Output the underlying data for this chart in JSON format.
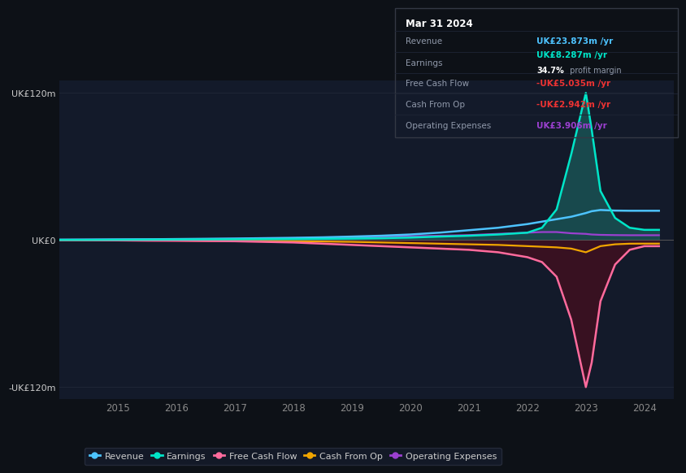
{
  "background_color": "#0d1117",
  "plot_bg_color": "#131a2a",
  "years": [
    2014.0,
    2014.5,
    2015.0,
    2015.5,
    2016.0,
    2016.5,
    2017.0,
    2017.5,
    2018.0,
    2018.5,
    2019.0,
    2019.5,
    2020.0,
    2020.5,
    2021.0,
    2021.5,
    2022.0,
    2022.25,
    2022.5,
    2022.75,
    2023.0,
    2023.1,
    2023.25,
    2023.5,
    2023.75,
    2024.0,
    2024.25
  ],
  "revenue": [
    0.3,
    0.4,
    0.5,
    0.6,
    0.8,
    1.0,
    1.2,
    1.5,
    1.8,
    2.2,
    2.8,
    3.5,
    4.5,
    6.0,
    8.0,
    10.0,
    13.0,
    15.0,
    17.0,
    19.0,
    22.0,
    23.5,
    24.5,
    24.0,
    23.873,
    23.873,
    23.873
  ],
  "earnings": [
    0.1,
    0.1,
    0.2,
    0.3,
    0.4,
    0.5,
    0.6,
    0.7,
    0.8,
    1.0,
    1.2,
    1.5,
    2.0,
    2.8,
    3.5,
    4.5,
    6.0,
    10.0,
    25.0,
    70.0,
    120.0,
    90.0,
    40.0,
    18.0,
    10.0,
    8.287,
    8.287
  ],
  "free_cash_flow": [
    -0.1,
    -0.2,
    -0.3,
    -0.5,
    -0.6,
    -0.8,
    -1.0,
    -1.5,
    -2.0,
    -3.0,
    -4.0,
    -5.0,
    -6.0,
    -7.0,
    -8.0,
    -10.0,
    -14.0,
    -18.0,
    -30.0,
    -65.0,
    -120.0,
    -100.0,
    -50.0,
    -20.0,
    -8.0,
    -5.035,
    -5.035
  ],
  "cash_from_op": [
    -0.1,
    -0.1,
    -0.2,
    -0.3,
    -0.4,
    -0.5,
    -0.6,
    -0.8,
    -1.0,
    -1.2,
    -1.5,
    -2.0,
    -2.5,
    -3.0,
    -3.5,
    -4.0,
    -5.0,
    -5.5,
    -6.0,
    -7.0,
    -10.0,
    -8.0,
    -5.0,
    -3.5,
    -3.0,
    -2.942,
    -2.942
  ],
  "operating_expenses": [
    0.2,
    0.3,
    0.4,
    0.5,
    0.6,
    0.8,
    1.0,
    1.2,
    1.5,
    1.8,
    2.0,
    2.5,
    3.0,
    3.5,
    4.0,
    5.0,
    6.0,
    6.5,
    6.5,
    5.5,
    5.0,
    4.5,
    4.2,
    4.0,
    3.906,
    3.906,
    3.906
  ],
  "ylim": [
    -130,
    130
  ],
  "yticks": [
    -120,
    0,
    120
  ],
  "ytick_labels": [
    "-UK£120m",
    "UK£0",
    "UK£120m"
  ],
  "xticks": [
    2015,
    2016,
    2017,
    2018,
    2019,
    2020,
    2021,
    2022,
    2023,
    2024
  ],
  "revenue_color": "#4dc3ff",
  "earnings_color": "#00e5c8",
  "fcf_color": "#ff6b9d",
  "cashop_color": "#f0a500",
  "opex_color": "#9b40d0",
  "earnings_fill_color": "#1a5a5a",
  "fcf_fill_color": "#3d1020",
  "legend_bg": "#151c2c",
  "legend_border": "#2a3040",
  "info_box": {
    "date": "Mar 31 2024",
    "revenue_label": "Revenue",
    "revenue_value": "UK£23.873m",
    "revenue_color": "#4dc3ff",
    "earnings_label": "Earnings",
    "earnings_value": "UK£8.287m",
    "earnings_color": "#00e5c8",
    "margin_text": "34.7%",
    "margin_label": " profit margin",
    "fcf_label": "Free Cash Flow",
    "fcf_value": "-UK£5.035m",
    "fcf_color": "#ee3333",
    "cashop_label": "Cash From Op",
    "cashop_value": "-UK£2.942m",
    "cashop_color": "#ee3333",
    "opex_label": "Operating Expenses",
    "opex_value": "UK£3.906m",
    "opex_color": "#9b40d0"
  }
}
